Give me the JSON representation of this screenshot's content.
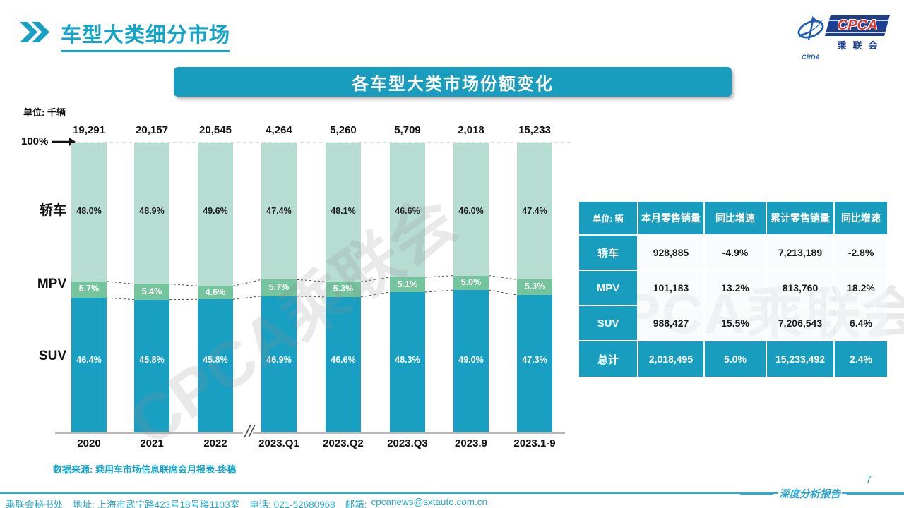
{
  "page": {
    "title": "车型大类细分市场",
    "page_number": "7",
    "report_label": "深度分析报告"
  },
  "logo": {
    "cpca": "CPCA",
    "crda": "CRDA",
    "cn": "乘联会"
  },
  "banner": {
    "title": "各车型大类市场份额变化"
  },
  "chart_notes": {
    "unit": "单位: 千辆",
    "hundred_percent": "100%",
    "source": "数据来源: 乘用车市场信息联席会月报表-终稿"
  },
  "chart_data": {
    "type": "bar",
    "stacked": true,
    "title": "各车型大类市场份额变化",
    "unit": "千辆",
    "categories": [
      "2020",
      "2021",
      "2022",
      "2023.Q1",
      "2023.Q2",
      "2023.Q3",
      "2023.9",
      "2023.1-9"
    ],
    "totals": [
      19291,
      20157,
      20545,
      4264,
      5260,
      5709,
      2018,
      15233
    ],
    "totals_display": [
      "19,291",
      "20,157",
      "20,545",
      "4,264",
      "5,260",
      "5,709",
      "2,018",
      "15,233"
    ],
    "series": [
      {
        "name": "轿车",
        "color": "#b7ddd3",
        "values": [
          48.0,
          48.9,
          49.6,
          47.4,
          48.1,
          46.6,
          46.0,
          47.4
        ]
      },
      {
        "name": "MPV",
        "color": "#74c49e",
        "values": [
          5.7,
          5.4,
          4.6,
          5.7,
          5.3,
          5.1,
          5.0,
          5.3
        ]
      },
      {
        "name": "SUV",
        "color": "#189fc1",
        "values": [
          46.4,
          45.8,
          45.8,
          46.9,
          46.6,
          48.3,
          49.0,
          47.3
        ]
      }
    ],
    "ylim": [
      0,
      100
    ],
    "value_suffix": "%",
    "axis_break_between": [
      "2022",
      "2023.Q1"
    ],
    "legend_position": "left"
  },
  "table": {
    "unit_label": "单位: 辆",
    "columns": [
      "本月零售销量",
      "同比增速",
      "累计零售销量",
      "同比增速"
    ],
    "rows": [
      {
        "label": "轿车",
        "values": [
          "928,885",
          "-4.9%",
          "7,213,189",
          "-2.8%"
        ],
        "total": false
      },
      {
        "label": "MPV",
        "values": [
          "101,183",
          "13.2%",
          "813,760",
          "18.2%"
        ],
        "total": false
      },
      {
        "label": "SUV",
        "values": [
          "988,427",
          "15.5%",
          "7,206,543",
          "6.4%"
        ],
        "total": false
      },
      {
        "label": "总计",
        "values": [
          "2,018,495",
          "5.0%",
          "15,233,492",
          "2.4%"
        ],
        "total": true
      }
    ]
  },
  "footer": {
    "org": "乘联会秘书处",
    "address": "地址: 上海市武宁路423号18号楼1103室",
    "phone": "电话: 021-52680968",
    "email_label": "邮箱:",
    "email": "cpcanews@sxtauto.com.cn"
  },
  "watermark": "CPCA乘联会",
  "colors": {
    "accent_teal": "#189dbe",
    "sedan": "#b7ddd3",
    "mpv": "#74c49e",
    "suv": "#189fc1",
    "title_cyan": "#12a5c9",
    "footer_teal": "#29a8cc",
    "logo_blue": "#1b3f97",
    "logo_red": "#d93a30",
    "axis_gray": "#a0a0a0"
  }
}
